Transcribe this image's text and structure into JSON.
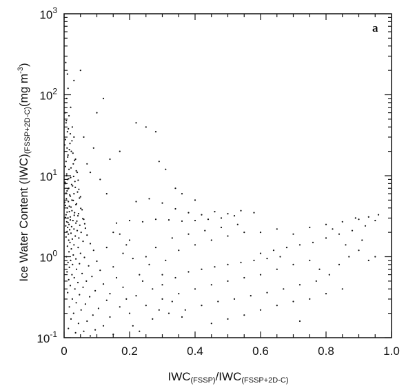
{
  "chart_data": {
    "type": "scatter",
    "panel_label": "a",
    "xlabel": {
      "main1": "IWC",
      "sub1": "(FSSP)",
      "main2": "/IWC",
      "sub2": "(FSSP+2D-C)"
    },
    "ylabel": {
      "main": "Ice Water Content (IWC)",
      "sub": "(FSSP+2D-C)",
      "unit_pre": "(mg m",
      "unit_sup": "-3",
      "unit_post": ")"
    },
    "xlim": [
      0,
      1.0
    ],
    "ylim": [
      0.1,
      1000
    ],
    "yscale": "log",
    "x_ticks": [
      {
        "value": 0,
        "label": "0"
      },
      {
        "value": 0.2,
        "label": "0.2"
      },
      {
        "value": 0.4,
        "label": "0.4"
      },
      {
        "value": 0.6,
        "label": "0.6"
      },
      {
        "value": 0.8,
        "label": "0.8"
      },
      {
        "value": 1.0,
        "label": "1.0"
      }
    ],
    "y_ticks": [
      {
        "value": 0.1,
        "base": "10",
        "exp": "-1"
      },
      {
        "value": 1,
        "base": "10",
        "exp": "0"
      },
      {
        "value": 10,
        "base": "10",
        "exp": "1"
      },
      {
        "value": 100,
        "base": "10",
        "exp": "2"
      },
      {
        "value": 1000,
        "base": "10",
        "exp": "3"
      }
    ],
    "grid": false,
    "point_color": "#111111",
    "points": [
      [
        0.005,
        250
      ],
      [
        0.01,
        180
      ],
      [
        0.012,
        120
      ],
      [
        0.008,
        90
      ],
      [
        0.02,
        70
      ],
      [
        0.015,
        55
      ],
      [
        0.006,
        45
      ],
      [
        0.025,
        40
      ],
      [
        0.01,
        35
      ],
      [
        0.03,
        30
      ],
      [
        0.004,
        28
      ],
      [
        0.018,
        25
      ],
      [
        0.009,
        22
      ],
      [
        0.022,
        20
      ],
      [
        0.012,
        18
      ],
      [
        0.035,
        16
      ],
      [
        0.006,
        15
      ],
      [
        0.028,
        14
      ],
      [
        0.015,
        12
      ],
      [
        0.04,
        11
      ],
      [
        0.008,
        10
      ],
      [
        0.02,
        9.5
      ],
      [
        0.011,
        9
      ],
      [
        0.033,
        8.5
      ],
      [
        0.005,
        8
      ],
      [
        0.026,
        7.5
      ],
      [
        0.014,
        7
      ],
      [
        0.045,
        6.8
      ],
      [
        0.009,
        6.5
      ],
      [
        0.03,
        6
      ],
      [
        0.017,
        5.8
      ],
      [
        0.05,
        5.5
      ],
      [
        0.007,
        5.2
      ],
      [
        0.024,
        5
      ],
      [
        0.013,
        4.8
      ],
      [
        0.038,
        4.5
      ],
      [
        0.004,
        4.3
      ],
      [
        0.021,
        4.1
      ],
      [
        0.01,
        4
      ],
      [
        0.055,
        3.8
      ],
      [
        0.016,
        3.6
      ],
      [
        0.032,
        3.5
      ],
      [
        0.006,
        3.3
      ],
      [
        0.042,
        3.2
      ],
      [
        0.019,
        3.1
      ],
      [
        0.012,
        3
      ],
      [
        0.06,
        2.9
      ],
      [
        0.027,
        2.8
      ],
      [
        0.008,
        2.7
      ],
      [
        0.036,
        2.6
      ],
      [
        0.015,
        2.5
      ],
      [
        0.048,
        2.45
      ],
      [
        0.005,
        2.4
      ],
      [
        0.023,
        2.35
      ],
      [
        0.011,
        2.3
      ],
      [
        0.065,
        2.25
      ],
      [
        0.03,
        2.2
      ],
      [
        0.017,
        2.15
      ],
      [
        0.04,
        2.1
      ],
      [
        0.009,
        2.05
      ],
      [
        0.052,
        2
      ],
      [
        0.021,
        1.95
      ],
      [
        0.013,
        1.9
      ],
      [
        0.07,
        1.85
      ],
      [
        0.034,
        1.8
      ],
      [
        0.006,
        1.75
      ],
      [
        0.045,
        1.7
      ],
      [
        0.025,
        1.65
      ],
      [
        0.014,
        1.6
      ],
      [
        0.058,
        1.55
      ],
      [
        0.018,
        1.5
      ],
      [
        0.08,
        1.45
      ],
      [
        0.03,
        1.4
      ],
      [
        0.01,
        1.35
      ],
      [
        0.043,
        1.3
      ],
      [
        0.022,
        1.25
      ],
      [
        0.09,
        1.2
      ],
      [
        0.015,
        1.15
      ],
      [
        0.05,
        1.1
      ],
      [
        0.028,
        1.05
      ],
      [
        0.007,
        1.0
      ],
      [
        0.062,
        0.98
      ],
      [
        0.036,
        0.94
      ],
      [
        0.02,
        0.9
      ],
      [
        0.1,
        0.88
      ],
      [
        0.012,
        0.85
      ],
      [
        0.047,
        0.82
      ],
      [
        0.026,
        0.8
      ],
      [
        0.075,
        0.77
      ],
      [
        0.016,
        0.74
      ],
      [
        0.038,
        0.7
      ],
      [
        0.11,
        0.68
      ],
      [
        0.009,
        0.65
      ],
      [
        0.055,
        0.62
      ],
      [
        0.024,
        0.6
      ],
      [
        0.085,
        0.57
      ],
      [
        0.031,
        0.55
      ],
      [
        0.014,
        0.52
      ],
      [
        0.068,
        0.5
      ],
      [
        0.042,
        0.48
      ],
      [
        0.12,
        0.46
      ],
      [
        0.019,
        0.44
      ],
      [
        0.058,
        0.42
      ],
      [
        0.033,
        0.4
      ],
      [
        0.095,
        0.38
      ],
      [
        0.011,
        0.36
      ],
      [
        0.047,
        0.34
      ],
      [
        0.078,
        0.32
      ],
      [
        0.025,
        0.3
      ],
      [
        0.13,
        0.29
      ],
      [
        0.037,
        0.27
      ],
      [
        0.065,
        0.26
      ],
      [
        0.016,
        0.24
      ],
      [
        0.105,
        0.23
      ],
      [
        0.052,
        0.22
      ],
      [
        0.029,
        0.2
      ],
      [
        0.088,
        0.19
      ],
      [
        0.14,
        0.18
      ],
      [
        0.021,
        0.17
      ],
      [
        0.07,
        0.16
      ],
      [
        0.044,
        0.15
      ],
      [
        0.12,
        0.14
      ],
      [
        0.013,
        0.13
      ],
      [
        0.095,
        0.125
      ],
      [
        0.06,
        0.12
      ],
      [
        0.035,
        0.115
      ],
      [
        0.15,
        0.11
      ],
      [
        0.08,
        0.105
      ],
      [
        0.003,
        60
      ],
      [
        0.007,
        48
      ],
      [
        0.013,
        38
      ],
      [
        0.019,
        33
      ],
      [
        0.024,
        27
      ],
      [
        0.002,
        24
      ],
      [
        0.016,
        21
      ],
      [
        0.027,
        19
      ],
      [
        0.011,
        17
      ],
      [
        0.032,
        15.5
      ],
      [
        0.004,
        13
      ],
      [
        0.021,
        12.5
      ],
      [
        0.037,
        11.5
      ],
      [
        0.008,
        10.5
      ],
      [
        0.029,
        9.8
      ],
      [
        0.014,
        9.2
      ],
      [
        0.043,
        8.8
      ],
      [
        0.003,
        8.3
      ],
      [
        0.023,
        7.8
      ],
      [
        0.034,
        7.2
      ],
      [
        0.012,
        6.9
      ],
      [
        0.041,
        6.3
      ],
      [
        0.006,
        6.1
      ],
      [
        0.019,
        5.6
      ],
      [
        0.047,
        5.3
      ],
      [
        0.028,
        4.95
      ],
      [
        0.002,
        4.7
      ],
      [
        0.036,
        4.4
      ],
      [
        0.016,
        4.2
      ],
      [
        0.051,
        3.95
      ],
      [
        0.024,
        3.7
      ],
      [
        0.009,
        3.55
      ],
      [
        0.044,
        3.4
      ],
      [
        0.031,
        3.25
      ],
      [
        0.004,
        3.05
      ],
      [
        0.057,
        2.95
      ],
      [
        0.019,
        2.85
      ],
      [
        0.039,
        2.75
      ],
      [
        0.012,
        2.65
      ],
      [
        0.063,
        2.55
      ],
      [
        0.17,
        1.9
      ],
      [
        0.19,
        1.4
      ],
      [
        0.21,
        0.95
      ],
      [
        0.23,
        0.6
      ],
      [
        0.15,
        0.75
      ],
      [
        0.18,
        0.42
      ],
      [
        0.22,
        0.33
      ],
      [
        0.25,
        0.25
      ],
      [
        0.2,
        0.2
      ],
      [
        0.27,
        0.17
      ],
      [
        0.16,
        2.6
      ],
      [
        0.2,
        2.8
      ],
      [
        0.24,
        2.7
      ],
      [
        0.28,
        2.9
      ],
      [
        0.32,
        2.85
      ],
      [
        0.36,
        2.75
      ],
      [
        0.4,
        2.8
      ],
      [
        0.44,
        2.9
      ],
      [
        0.48,
        3.0
      ],
      [
        0.52,
        3.2
      ],
      [
        0.3,
        4.6
      ],
      [
        0.34,
        3.9
      ],
      [
        0.38,
        3.5
      ],
      [
        0.42,
        3.3
      ],
      [
        0.46,
        3.6
      ],
      [
        0.5,
        3.4
      ],
      [
        0.54,
        3.7
      ],
      [
        0.58,
        3.5
      ],
      [
        0.26,
        5.2
      ],
      [
        0.22,
        4.8
      ],
      [
        0.12,
        90
      ],
      [
        0.17,
        20
      ],
      [
        0.22,
        45
      ],
      [
        0.25,
        40
      ],
      [
        0.28,
        35
      ],
      [
        0.31,
        12
      ],
      [
        0.29,
        15
      ],
      [
        0.34,
        7
      ],
      [
        0.36,
        6
      ],
      [
        0.4,
        5
      ],
      [
        0.1,
        60
      ],
      [
        0.06,
        30
      ],
      [
        0.09,
        22
      ],
      [
        0.14,
        16
      ],
      [
        0.07,
        14
      ],
      [
        0.11,
        9
      ],
      [
        0.05,
        200
      ],
      [
        0.03,
        150
      ],
      [
        0.08,
        11
      ],
      [
        0.13,
        6
      ],
      [
        0.3,
        0.45
      ],
      [
        0.34,
        0.55
      ],
      [
        0.38,
        0.65
      ],
      [
        0.42,
        0.7
      ],
      [
        0.46,
        0.75
      ],
      [
        0.5,
        0.8
      ],
      [
        0.54,
        0.85
      ],
      [
        0.58,
        0.9
      ],
      [
        0.62,
        0.95
      ],
      [
        0.66,
        1.0
      ],
      [
        0.3,
        0.3
      ],
      [
        0.35,
        0.35
      ],
      [
        0.4,
        0.4
      ],
      [
        0.45,
        0.45
      ],
      [
        0.5,
        0.5
      ],
      [
        0.55,
        0.55
      ],
      [
        0.6,
        0.6
      ],
      [
        0.65,
        0.7
      ],
      [
        0.7,
        0.8
      ],
      [
        0.75,
        0.9
      ],
      [
        0.32,
        0.2
      ],
      [
        0.37,
        0.22
      ],
      [
        0.42,
        0.25
      ],
      [
        0.47,
        0.28
      ],
      [
        0.52,
        0.3
      ],
      [
        0.57,
        0.33
      ],
      [
        0.62,
        0.36
      ],
      [
        0.67,
        0.4
      ],
      [
        0.72,
        0.45
      ],
      [
        0.77,
        0.5
      ],
      [
        0.6,
        1.1
      ],
      [
        0.64,
        1.2
      ],
      [
        0.68,
        1.3
      ],
      [
        0.72,
        1.4
      ],
      [
        0.76,
        1.5
      ],
      [
        0.8,
        1.7
      ],
      [
        0.84,
        1.9
      ],
      [
        0.88,
        2.1
      ],
      [
        0.92,
        2.4
      ],
      [
        0.95,
        2.8
      ],
      [
        0.6,
        2.0
      ],
      [
        0.65,
        2.2
      ],
      [
        0.7,
        1.9
      ],
      [
        0.75,
        2.3
      ],
      [
        0.8,
        2.5
      ],
      [
        0.85,
        2.7
      ],
      [
        0.9,
        2.9
      ],
      [
        0.93,
        3.1
      ],
      [
        0.96,
        3.3
      ],
      [
        0.86,
        1.4
      ],
      [
        0.81,
        0.6
      ],
      [
        0.84,
        0.8
      ],
      [
        0.87,
        1.0
      ],
      [
        0.9,
        1.2
      ],
      [
        0.93,
        0.9
      ],
      [
        0.95,
        1.0
      ],
      [
        0.82,
        2.2
      ],
      [
        0.89,
        3.0
      ],
      [
        0.91,
        1.6
      ],
      [
        0.78,
        0.7
      ],
      [
        0.45,
        0.15
      ],
      [
        0.5,
        0.17
      ],
      [
        0.55,
        0.19
      ],
      [
        0.6,
        0.22
      ],
      [
        0.65,
        0.25
      ],
      [
        0.7,
        0.28
      ],
      [
        0.75,
        0.3
      ],
      [
        0.8,
        0.35
      ],
      [
        0.85,
        0.4
      ],
      [
        0.72,
        0.16
      ],
      [
        0.35,
        1.2
      ],
      [
        0.4,
        1.4
      ],
      [
        0.45,
        1.6
      ],
      [
        0.5,
        1.8
      ],
      [
        0.55,
        2.0
      ],
      [
        0.33,
        1.7
      ],
      [
        0.38,
        1.9
      ],
      [
        0.43,
        2.1
      ],
      [
        0.48,
        2.3
      ],
      [
        0.53,
        2.5
      ],
      [
        0.25,
        1.0
      ],
      [
        0.28,
        1.3
      ],
      [
        0.26,
        0.8
      ],
      [
        0.31,
        0.9
      ],
      [
        0.24,
        0.5
      ],
      [
        0.27,
        0.4
      ],
      [
        0.3,
        0.6
      ],
      [
        0.29,
        0.22
      ],
      [
        0.33,
        0.28
      ],
      [
        0.36,
        0.18
      ],
      [
        0.18,
        1.1
      ],
      [
        0.2,
        1.6
      ],
      [
        0.16,
        0.55
      ],
      [
        0.19,
        0.3
      ],
      [
        0.17,
        0.24
      ],
      [
        0.21,
        0.14
      ],
      [
        0.23,
        0.12
      ],
      [
        0.14,
        0.35
      ],
      [
        0.13,
        1.3
      ],
      [
        0.15,
        2.0
      ]
    ]
  }
}
